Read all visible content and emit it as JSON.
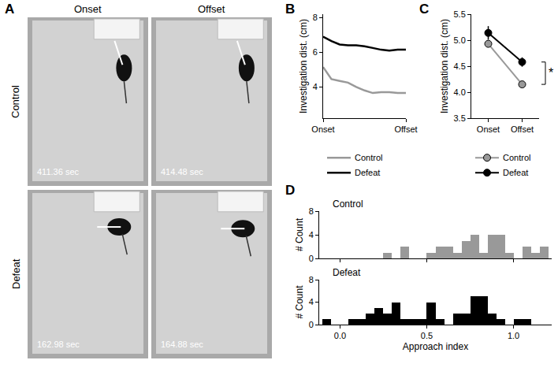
{
  "panel_a": {
    "panel": "A",
    "columns": [
      "Onset",
      "Offset"
    ],
    "rows": [
      "Control",
      "Defeat"
    ],
    "timestamps": [
      [
        "411.36 sec",
        "414.48 sec"
      ],
      [
        "162.98 sec",
        "164.88 sec"
      ]
    ]
  },
  "chart_data": [
    {
      "panel": "B",
      "type": "line",
      "x": [
        0,
        1,
        2,
        3,
        4,
        5,
        6,
        7,
        8,
        9,
        10
      ],
      "series": [
        {
          "name": "Control",
          "color": "#999999",
          "values": [
            5.15,
            4.45,
            4.35,
            4.25,
            4.0,
            3.8,
            3.65,
            3.7,
            3.7,
            3.65,
            3.65
          ]
        },
        {
          "name": "Defeat",
          "color": "#000000",
          "values": [
            6.9,
            6.65,
            6.45,
            6.4,
            6.4,
            6.35,
            6.25,
            6.15,
            6.1,
            6.15,
            6.15
          ]
        }
      ],
      "xlim": [
        0,
        10
      ],
      "xticks": [
        {
          "value": 0,
          "label": "Onset"
        },
        {
          "value": 10,
          "label": "Offset"
        }
      ],
      "ylim": [
        2.2,
        8.2
      ],
      "yticks": [
        4,
        6,
        8
      ],
      "y_label": "Investigation dist. (cm)",
      "legend": "bottom",
      "grid": false
    },
    {
      "panel": "C",
      "type": "line",
      "categories": [
        "Onset",
        "Offset"
      ],
      "series": [
        {
          "name": "Control",
          "color": "#999999",
          "marker": "circle",
          "values": [
            4.93,
            4.15
          ],
          "errors": [
            0.06,
            0.06
          ]
        },
        {
          "name": "Defeat",
          "color": "#000000",
          "marker": "circle",
          "values": [
            5.14,
            4.58
          ],
          "errors": [
            0.13,
            0.09
          ]
        }
      ],
      "ylim": [
        3.5,
        5.5
      ],
      "yticks": [
        {
          "value": 3.5,
          "label": "3.5"
        },
        {
          "value": 4.0,
          "label": "4.0"
        },
        {
          "value": 4.5,
          "label": "4.5"
        },
        {
          "value": 5.0,
          "label": "5.0"
        },
        {
          "value": 5.5,
          "label": "5.5"
        }
      ],
      "y_label": "Investigation dist. (cm)",
      "legend": "bottom",
      "grid": false,
      "annotations": [
        {
          "text": "*"
        }
      ]
    },
    {
      "panel": "D",
      "type": "histogram",
      "title": "Control",
      "color": "#999999",
      "bins": [
        -0.1,
        -0.05,
        0,
        0.05,
        0.1,
        0.15,
        0.2,
        0.25,
        0.3,
        0.35,
        0.4,
        0.45,
        0.5,
        0.55,
        0.6,
        0.65,
        0.7,
        0.75,
        0.8,
        0.85,
        0.9,
        0.95,
        1.0,
        1.05,
        1.1,
        1.15,
        1.2
      ],
      "values": [
        0,
        0,
        0,
        0,
        0,
        0,
        0,
        1,
        0,
        2,
        0,
        0,
        1,
        2,
        2,
        1,
        3,
        4,
        1,
        4,
        4,
        1,
        0,
        2,
        1,
        2
      ],
      "xlim": [
        -0.12,
        1.22
      ],
      "xticks": [
        {
          "value": 0,
          "label": "0.0"
        },
        {
          "value": 0.5,
          "label": "0.5"
        },
        {
          "value": 1,
          "label": "1.0"
        }
      ],
      "ylim": [
        0,
        8
      ],
      "yticks": [
        0,
        4,
        8
      ],
      "y_label": "# Count",
      "tick_labels": "y",
      "grid": false
    },
    {
      "type": "histogram",
      "title": "Defeat",
      "color": "#000000",
      "bins": [
        -0.1,
        -0.05,
        0,
        0.05,
        0.1,
        0.15,
        0.2,
        0.25,
        0.3,
        0.35,
        0.4,
        0.45,
        0.5,
        0.55,
        0.6,
        0.65,
        0.7,
        0.75,
        0.8,
        0.85,
        0.9,
        0.95,
        1.0,
        1.05,
        1.1,
        1.15,
        1.2
      ],
      "values": [
        1,
        0,
        0,
        1,
        1,
        2,
        3,
        2,
        4,
        1,
        1,
        1,
        4,
        1,
        0,
        2,
        2,
        5,
        5,
        2,
        1,
        0,
        1,
        1,
        0,
        0
      ],
      "xlim": [
        -0.12,
        1.22
      ],
      "xticks": [
        {
          "value": 0,
          "label": "0.0"
        },
        {
          "value": 0.5,
          "label": "0.5"
        },
        {
          "value": 1,
          "label": "1.0"
        }
      ],
      "ylim": [
        0,
        8
      ],
      "yticks": [
        0,
        4,
        8
      ],
      "y_label": "# Count",
      "x_label": "Approach index",
      "grid": false
    }
  ]
}
